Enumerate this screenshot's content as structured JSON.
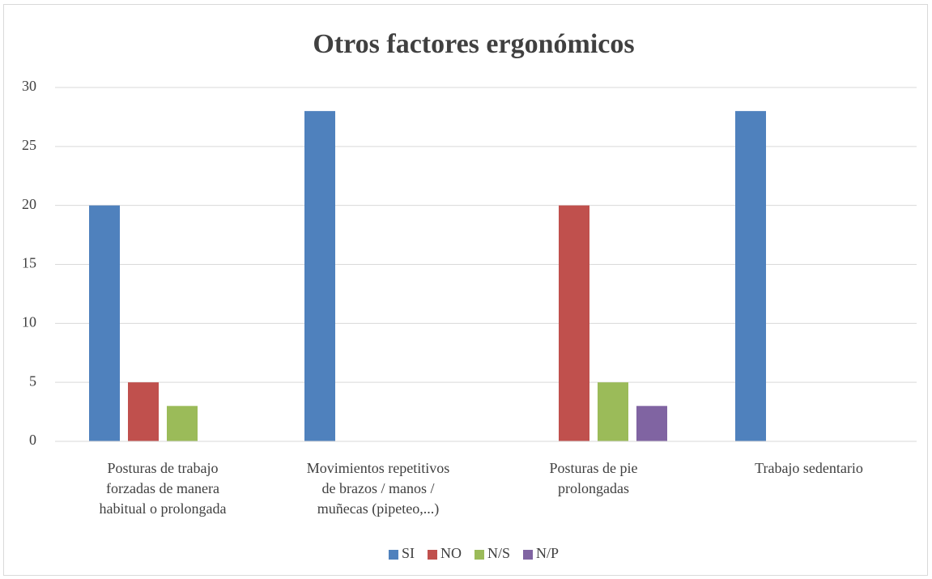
{
  "chart_data": {
    "type": "bar",
    "title": "Otros factores ergonómicos",
    "categories": [
      "Posturas de trabajo\nforzadas de manera\nhabitual o prolongada",
      "Movimientos repetitivos\nde brazos / manos /\nmuñecas (pipeteo,...)",
      "Posturas de pie\nprolongadas",
      "Trabajo sedentario"
    ],
    "series": [
      {
        "name": "SI",
        "color": "#4f81bd",
        "values": [
          20,
          28,
          0,
          28
        ]
      },
      {
        "name": "NO",
        "color": "#c0504d",
        "values": [
          5,
          0,
          20,
          0
        ]
      },
      {
        "name": "N/S",
        "color": "#9bbb59",
        "values": [
          3,
          0,
          5,
          0
        ]
      },
      {
        "name": "N/P",
        "color": "#8064a2",
        "values": [
          0,
          0,
          3,
          0
        ]
      }
    ],
    "ylim": [
      0,
      30
    ],
    "yticks": [
      0,
      5,
      10,
      15,
      20,
      25,
      30
    ],
    "grid": true,
    "legend": "bottom"
  }
}
